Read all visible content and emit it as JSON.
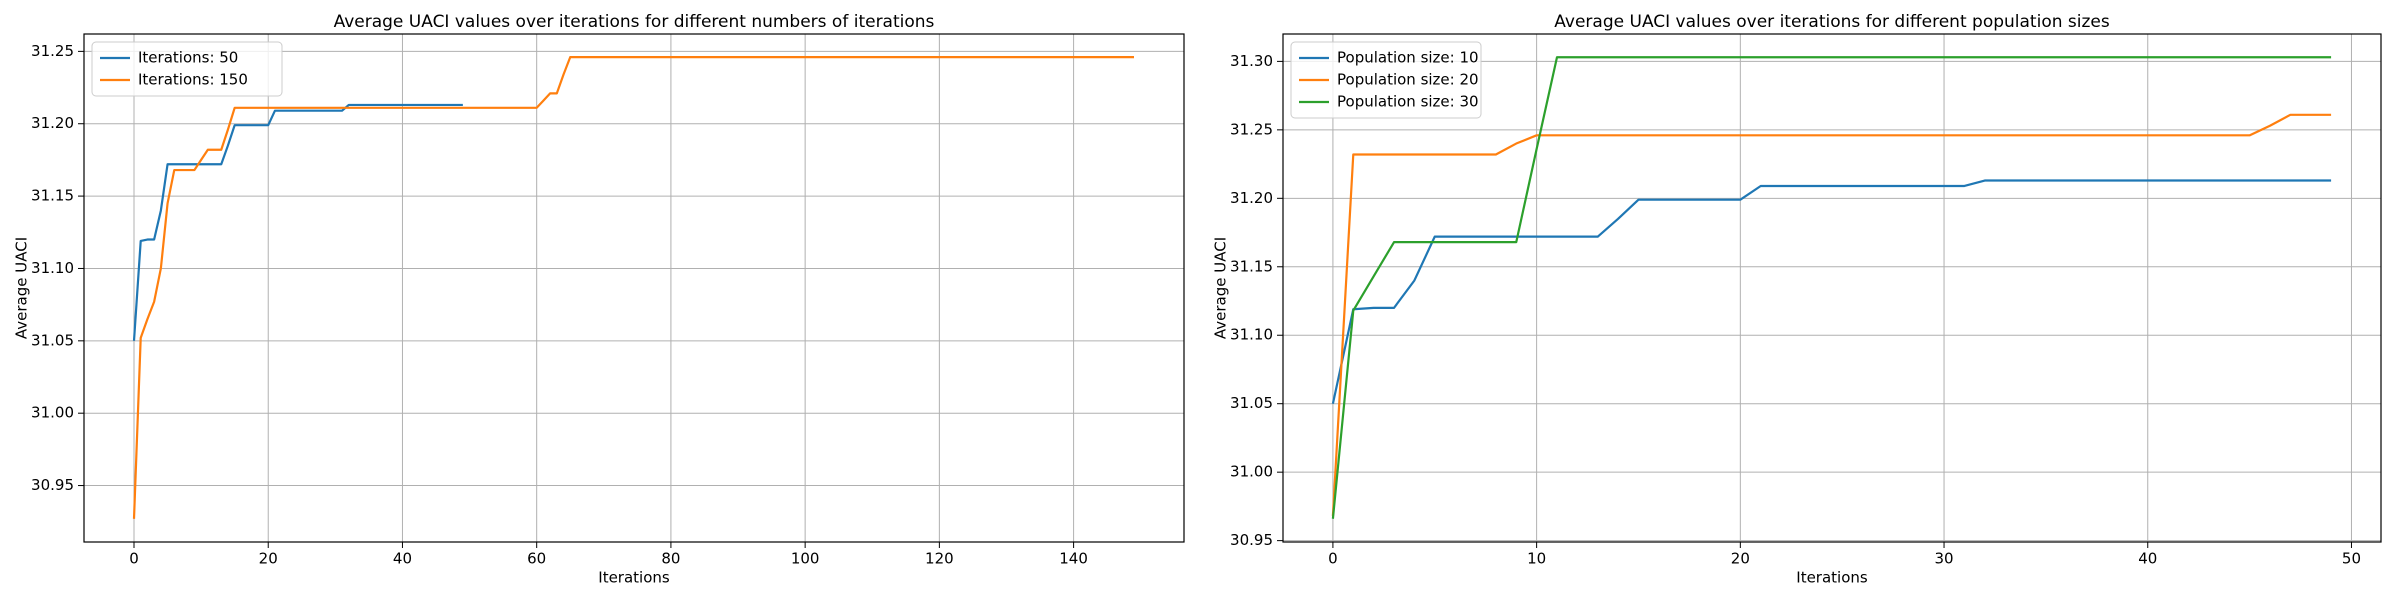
{
  "chart_data": [
    {
      "type": "line",
      "title": "Average UACI values over iterations for different numbers of iterations",
      "xlabel": "Iterations",
      "ylabel": "Average UACI",
      "xlim": [
        -7.45,
        156.45
      ],
      "ylim": [
        30.911,
        31.262
      ],
      "xticks": [
        0,
        20,
        40,
        60,
        80,
        100,
        120,
        140
      ],
      "yticks": [
        30.95,
        {
          "value": 31,
          "label": "31.00"
        },
        31.05,
        {
          "value": 31.1,
          "label": "31.10"
        },
        31.15,
        {
          "value": 31.2,
          "label": "31.20"
        },
        31.25
      ],
      "grid": true,
      "legend": "upper left",
      "series": [
        {
          "name": "Iterations: 50",
          "color": "#1f77b4",
          "values": [
            31.05,
            31.119,
            31.12,
            31.12,
            31.14,
            31.172,
            31.172,
            31.172,
            31.172,
            31.172,
            31.172,
            31.172,
            31.172,
            31.172,
            31.185,
            31.199,
            31.199,
            31.199,
            31.199,
            31.199,
            31.199,
            31.209,
            31.209,
            31.209,
            31.209,
            31.209,
            31.209,
            31.209,
            31.209,
            31.209,
            31.209,
            31.209,
            31.213,
            31.213,
            31.213,
            31.213,
            31.213,
            31.213,
            31.213,
            31.213,
            31.213,
            31.213,
            31.213,
            31.213,
            31.213,
            31.213,
            31.213,
            31.213,
            31.213,
            31.213
          ]
        },
        {
          "name": "Iterations: 150",
          "color": "#ff7f0e",
          "values": [
            30.927,
            31.052,
            31.065,
            31.077,
            31.1,
            31.145,
            31.168,
            31.168,
            31.168,
            31.168,
            31.175,
            31.182,
            31.182,
            31.182,
            31.196,
            31.211,
            31.211,
            31.211,
            31.211,
            31.211,
            31.211,
            31.211,
            31.211,
            31.211,
            31.211,
            31.211,
            31.211,
            31.211,
            31.211,
            31.211,
            31.211,
            31.211,
            31.211,
            31.211,
            31.211,
            31.211,
            31.211,
            31.211,
            31.211,
            31.211,
            31.211,
            31.211,
            31.211,
            31.211,
            31.211,
            31.211,
            31.211,
            31.211,
            31.211,
            31.211,
            31.211,
            31.211,
            31.211,
            31.211,
            31.211,
            31.211,
            31.211,
            31.211,
            31.211,
            31.211,
            31.211,
            31.216,
            31.221,
            31.221,
            31.234,
            31.246,
            31.246,
            31.246,
            31.246,
            31.246,
            31.246,
            31.246,
            31.246,
            31.246,
            31.246,
            31.246,
            31.246,
            31.246,
            31.246,
            31.246,
            31.246,
            31.246,
            31.246,
            31.246,
            31.246,
            31.246,
            31.246,
            31.246,
            31.246,
            31.246,
            31.246,
            31.246,
            31.246,
            31.246,
            31.246,
            31.246,
            31.246,
            31.246,
            31.246,
            31.246,
            31.246,
            31.246,
            31.246,
            31.246,
            31.246,
            31.246,
            31.246,
            31.246,
            31.246,
            31.246,
            31.246,
            31.246,
            31.246,
            31.246,
            31.246,
            31.246,
            31.246,
            31.246,
            31.246,
            31.246,
            31.246,
            31.246,
            31.246,
            31.246,
            31.246,
            31.246,
            31.246,
            31.246,
            31.246,
            31.246,
            31.246,
            31.246,
            31.246,
            31.246,
            31.246,
            31.246,
            31.246,
            31.246,
            31.246,
            31.246,
            31.246,
            31.246,
            31.246,
            31.246,
            31.246,
            31.246,
            31.246,
            31.246,
            31.246,
            31.246
          ]
        }
      ]
    },
    {
      "type": "line",
      "title": "Average UACI values over iterations for different population sizes",
      "xlabel": "Iterations",
      "ylabel": "Average UACI",
      "xlim": [
        -2.45,
        51.45
      ],
      "ylim": [
        30.949,
        31.32
      ],
      "xticks": [
        0,
        10,
        20,
        30,
        40,
        50
      ],
      "yticks": [
        30.95,
        {
          "value": 31,
          "label": "31.00"
        },
        31.05,
        {
          "value": 31.1,
          "label": "31.10"
        },
        31.15,
        {
          "value": 31.2,
          "label": "31.20"
        },
        31.25,
        {
          "value": 31.3,
          "label": "31.30"
        }
      ],
      "grid": true,
      "legend": "upper left",
      "series": [
        {
          "name": "Population size: 10",
          "color": "#1f77b4",
          "values": [
            31.05,
            31.119,
            31.12,
            31.12,
            31.14,
            31.172,
            31.172,
            31.172,
            31.172,
            31.172,
            31.172,
            31.172,
            31.172,
            31.172,
            31.185,
            31.199,
            31.199,
            31.199,
            31.199,
            31.199,
            31.199,
            31.209,
            31.209,
            31.209,
            31.209,
            31.209,
            31.209,
            31.209,
            31.209,
            31.209,
            31.209,
            31.209,
            31.213,
            31.213,
            31.213,
            31.213,
            31.213,
            31.213,
            31.213,
            31.213,
            31.213,
            31.213,
            31.213,
            31.213,
            31.213,
            31.213,
            31.213,
            31.213,
            31.213,
            31.213
          ]
        },
        {
          "name": "Population size: 20",
          "color": "#ff7f0e",
          "values": [
            30.968,
            31.232,
            31.232,
            31.232,
            31.232,
            31.232,
            31.232,
            31.232,
            31.232,
            31.24,
            31.246,
            31.246,
            31.246,
            31.246,
            31.246,
            31.246,
            31.246,
            31.246,
            31.246,
            31.246,
            31.246,
            31.246,
            31.246,
            31.246,
            31.246,
            31.246,
            31.246,
            31.246,
            31.246,
            31.246,
            31.246,
            31.246,
            31.246,
            31.246,
            31.246,
            31.246,
            31.246,
            31.246,
            31.246,
            31.246,
            31.246,
            31.246,
            31.246,
            31.246,
            31.246,
            31.246,
            31.253,
            31.261,
            31.261,
            31.261
          ]
        },
        {
          "name": "Population size: 30",
          "color": "#2ca02c",
          "values": [
            30.966,
            31.118,
            31.143,
            31.168,
            31.168,
            31.168,
            31.168,
            31.168,
            31.168,
            31.168,
            31.236,
            31.303,
            31.303,
            31.303,
            31.303,
            31.303,
            31.303,
            31.303,
            31.303,
            31.303,
            31.303,
            31.303,
            31.303,
            31.303,
            31.303,
            31.303,
            31.303,
            31.303,
            31.303,
            31.303,
            31.303,
            31.303,
            31.303,
            31.303,
            31.303,
            31.303,
            31.303,
            31.303,
            31.303,
            31.303,
            31.303,
            31.303,
            31.303,
            31.303,
            31.303,
            31.303,
            31.303,
            31.303,
            31.303,
            31.303
          ]
        }
      ]
    }
  ]
}
